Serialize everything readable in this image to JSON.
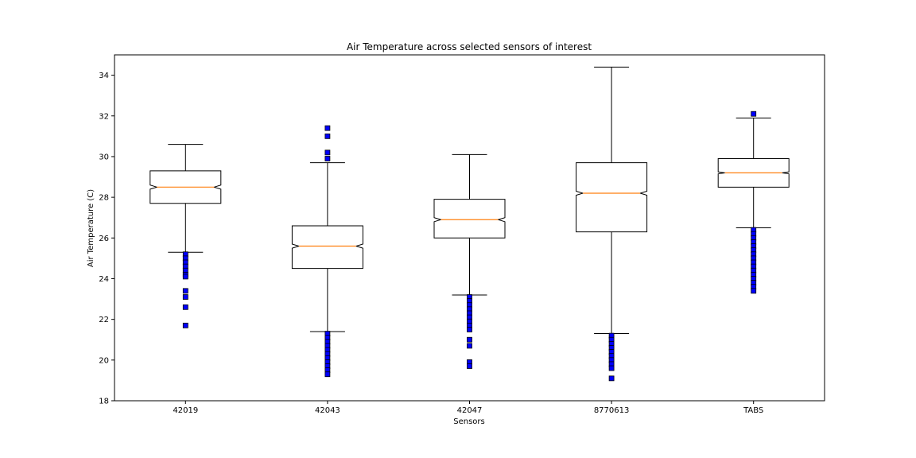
{
  "chart_data": {
    "type": "box",
    "title": "Air Temperature across selected sensors of interest",
    "xlabel": "Sensors",
    "ylabel": "Air Temperature (C)",
    "ylim": [
      18,
      35
    ],
    "yticks": [
      "18",
      "20",
      "22",
      "24",
      "26",
      "28",
      "30",
      "32",
      "34"
    ],
    "notched": true,
    "grid": false,
    "colors": {
      "box_edge": "#000000",
      "box_fill": "#ffffff",
      "median": "#ff7f0e",
      "outlier_fill": "#0000ff",
      "outlier_edge": "#000000"
    },
    "categories": [
      "42019",
      "42043",
      "42047",
      "8770613",
      "TABS"
    ],
    "boxes": [
      {
        "label": "42019",
        "whisker_low": 25.3,
        "q1": 27.7,
        "median": 28.5,
        "q3": 29.3,
        "whisker_high": 30.6,
        "notch_low": 28.4,
        "notch_high": 28.6,
        "outliers": [
          25.2,
          25.0,
          24.8,
          24.6,
          24.4,
          24.2,
          24.1,
          23.4,
          23.1,
          22.6,
          21.7
        ]
      },
      {
        "label": "42043",
        "whisker_low": 21.4,
        "q1": 24.5,
        "median": 25.6,
        "q3": 26.6,
        "whisker_high": 29.7,
        "notch_low": 25.5,
        "notch_high": 25.7,
        "outliers": [
          31.4,
          31.0,
          30.2,
          29.9,
          21.3,
          21.1,
          20.9,
          20.7,
          20.5,
          20.3,
          20.1,
          19.9,
          19.7,
          19.5,
          19.3
        ]
      },
      {
        "label": "42047",
        "whisker_low": 23.2,
        "q1": 26.0,
        "median": 26.9,
        "q3": 27.9,
        "whisker_high": 30.1,
        "notch_low": 26.8,
        "notch_high": 27.0,
        "outliers": [
          23.1,
          22.9,
          22.7,
          22.5,
          22.3,
          22.1,
          21.9,
          21.7,
          21.5,
          21.0,
          20.7,
          19.9,
          19.7
        ]
      },
      {
        "label": "8770613",
        "whisker_low": 21.3,
        "q1": 26.3,
        "median": 28.2,
        "q3": 29.7,
        "whisker_high": 34.4,
        "notch_low": 28.1,
        "notch_high": 28.3,
        "outliers": [
          21.2,
          21.0,
          20.8,
          20.6,
          20.4,
          20.2,
          20.0,
          19.8,
          19.6,
          19.1
        ]
      },
      {
        "label": "TABS",
        "whisker_low": 26.5,
        "q1": 28.5,
        "median": 29.2,
        "q3": 29.9,
        "whisker_high": 31.9,
        "notch_low": 29.15,
        "notch_high": 29.25,
        "outliers": [
          32.1,
          26.4,
          26.2,
          26.0,
          25.8,
          25.6,
          25.4,
          25.2,
          25.0,
          24.8,
          24.6,
          24.4,
          24.2,
          24.0,
          23.8,
          23.6,
          23.4
        ]
      }
    ]
  }
}
